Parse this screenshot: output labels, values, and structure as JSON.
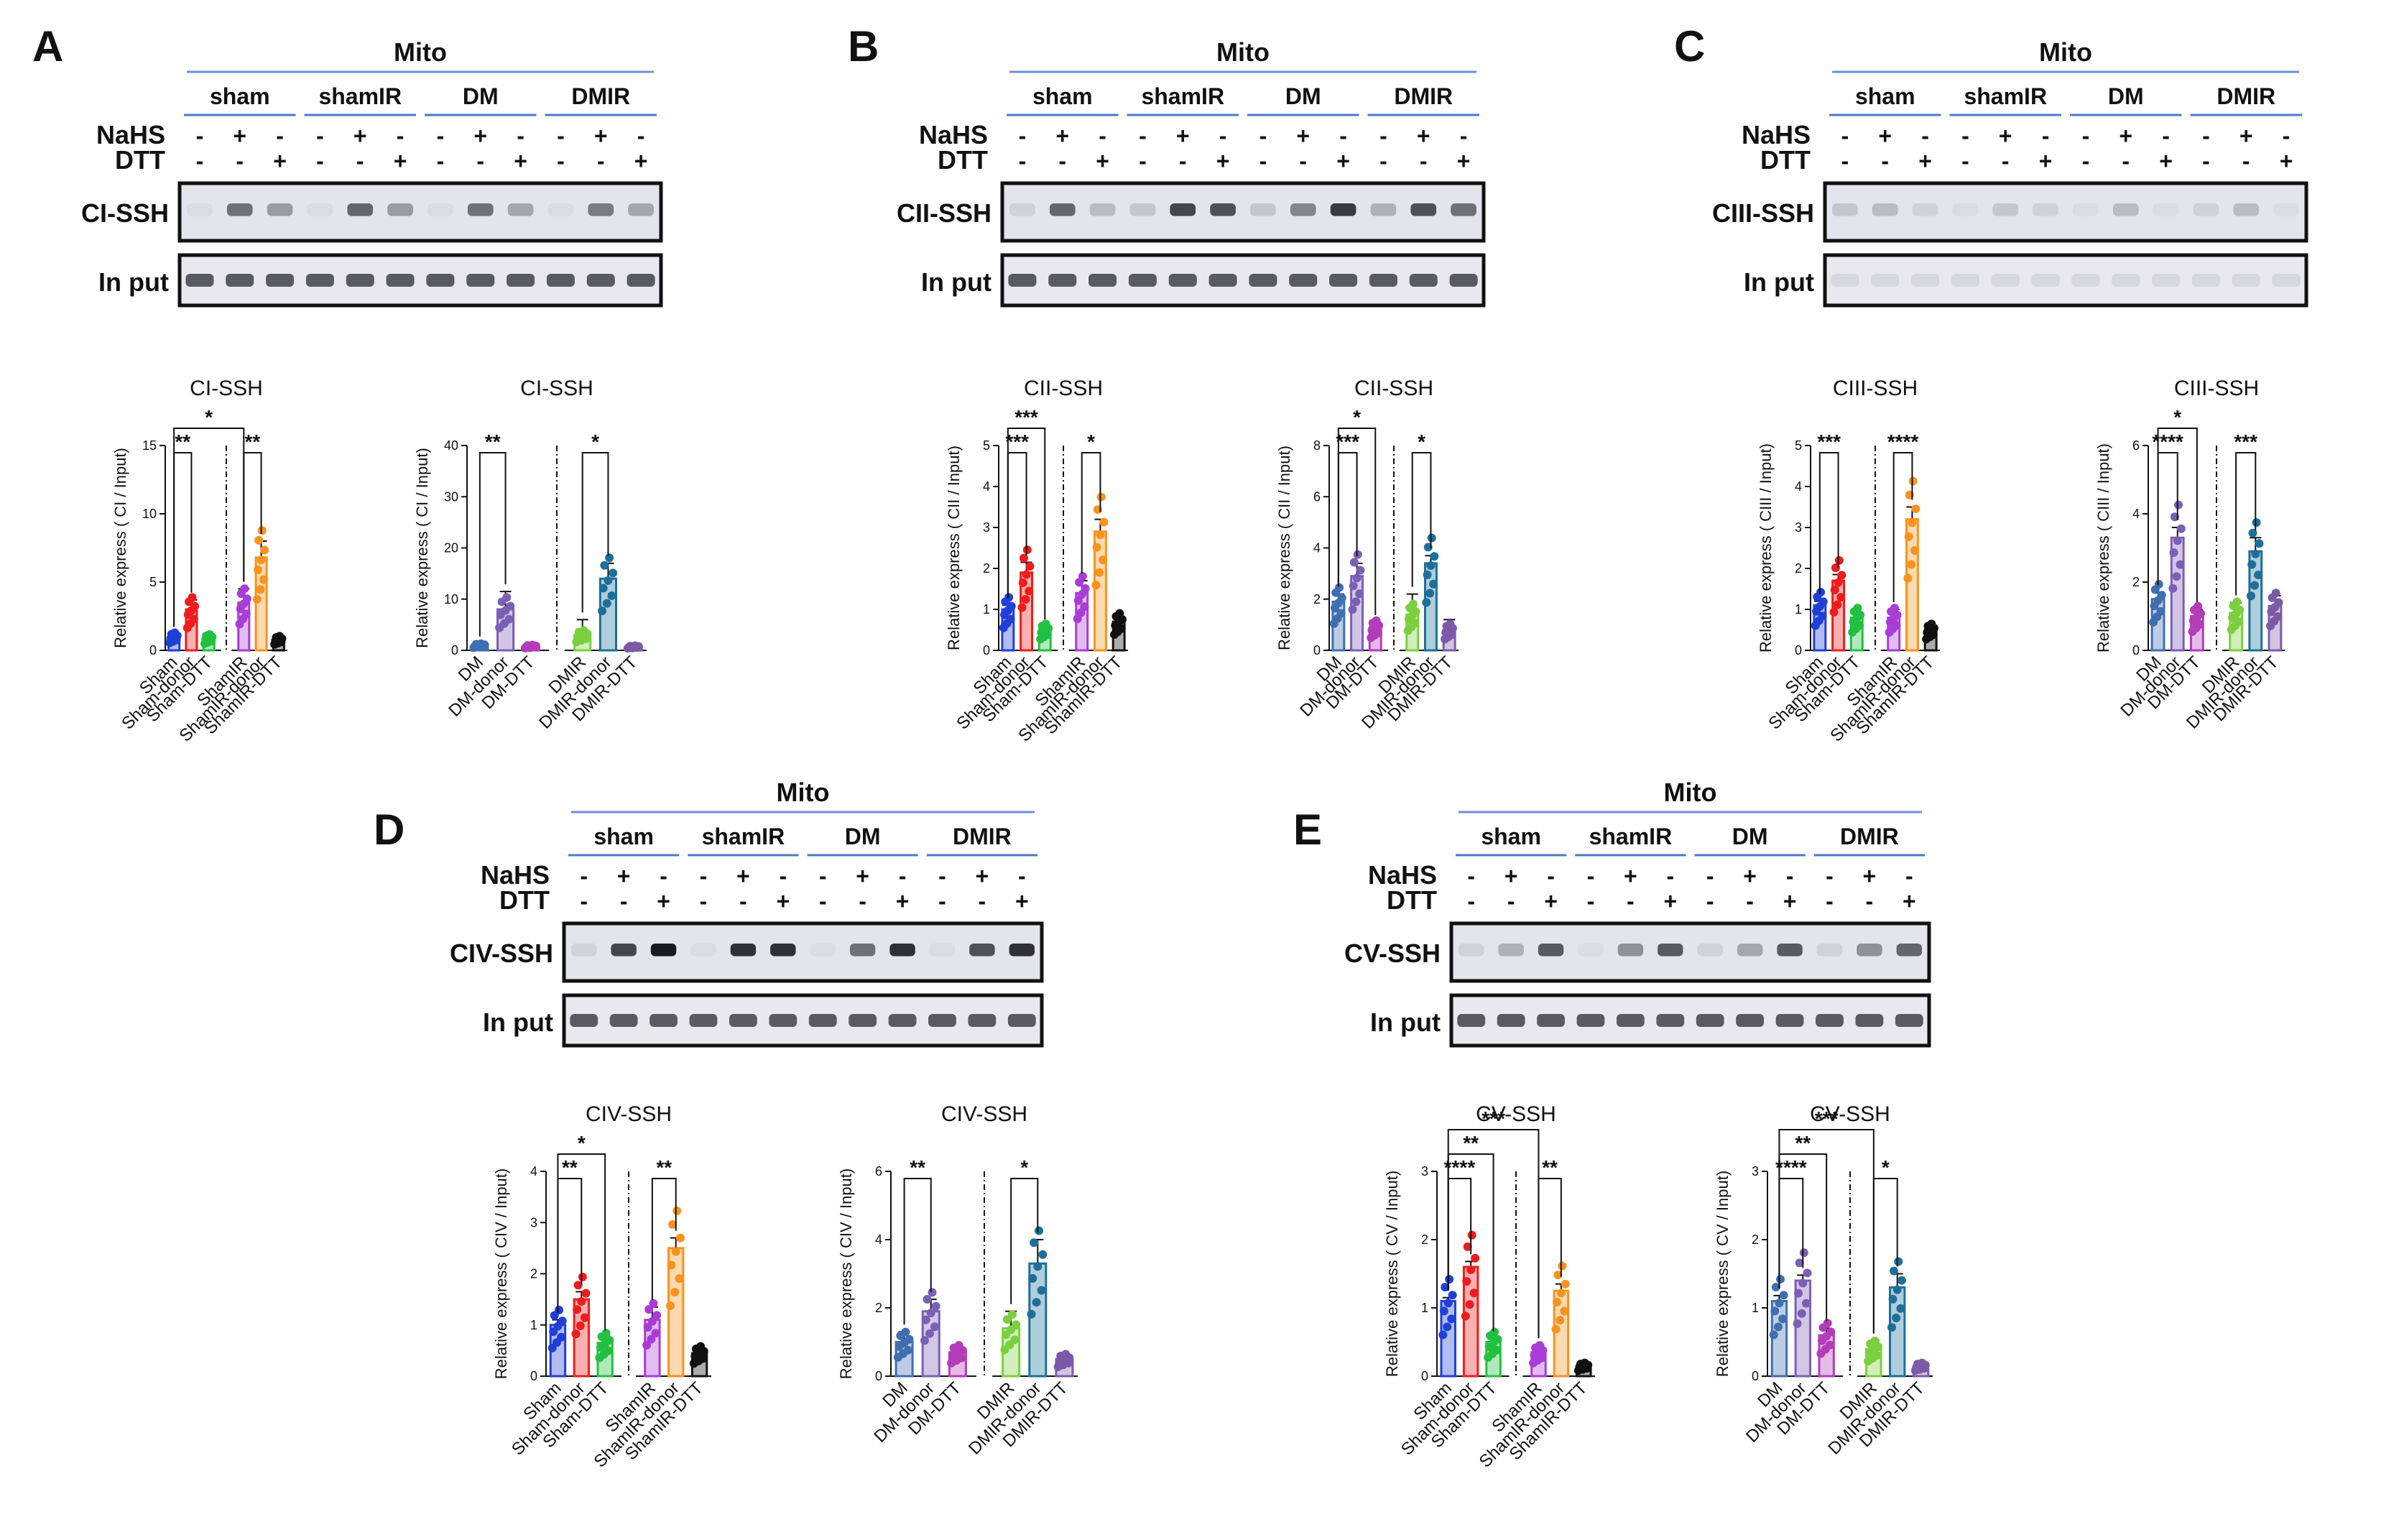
{
  "header": {
    "mito": "Mito",
    "groups": [
      "sham",
      "shamIR",
      "DM",
      "DMIR"
    ],
    "row_nahs": "NaHS",
    "row_dtt": "DTT",
    "nahs_signs": [
      "-",
      "+",
      "-"
    ],
    "dtt_signs": [
      "-",
      "-",
      "+"
    ],
    "input_label": "In put"
  },
  "colors": {
    "blue": "#1f3fd8",
    "red": "#ee1c1c",
    "green": "#22c040",
    "purple": "#a93cd6",
    "orange": "#f7931e",
    "black": "#111111",
    "steel": "#3f6fb0",
    "lavender": "#7b5fb5",
    "magenta": "#b33cb8",
    "lime": "#7bcf3e",
    "teal": "#1d6f99",
    "violet": "#7d5aa8"
  },
  "panels": [
    {
      "id": "A",
      "blot_label": "CI-SSH",
      "band_intensity": [
        0.05,
        0.55,
        0.35,
        0.05,
        0.6,
        0.35,
        0.05,
        0.55,
        0.3,
        0.05,
        0.5,
        0.3
      ]
    },
    {
      "id": "B",
      "blot_label": "CII-SSH",
      "band_intensity": [
        0.1,
        0.6,
        0.2,
        0.15,
        0.75,
        0.7,
        0.15,
        0.45,
        0.8,
        0.25,
        0.7,
        0.55
      ]
    },
    {
      "id": "C",
      "blot_label": "CIII-SSH",
      "band_intensity": [
        0.15,
        0.2,
        0.1,
        0.05,
        0.15,
        0.1,
        0.05,
        0.2,
        0.05,
        0.1,
        0.2,
        0.05
      ]
    },
    {
      "id": "D",
      "blot_label": "CIV-SSH",
      "band_intensity": [
        0.1,
        0.75,
        0.95,
        0.05,
        0.85,
        0.85,
        0.05,
        0.55,
        0.85,
        0.05,
        0.7,
        0.85
      ]
    },
    {
      "id": "E",
      "blot_label": "CV-SSH",
      "band_intensity": [
        0.1,
        0.25,
        0.65,
        0.05,
        0.4,
        0.65,
        0.1,
        0.3,
        0.65,
        0.1,
        0.4,
        0.6
      ]
    }
  ],
  "chart_data": [
    {
      "panel": "A",
      "type": "bar",
      "title": "CI-SSH",
      "ylabel": "Relative express ( CI / Input)",
      "categories": [
        "Sham",
        "Sham-donor",
        "Sham-DTT",
        "ShamIR",
        "ShamIR-donor",
        "ShamIR-DTT"
      ],
      "values": [
        1.0,
        3.0,
        0.9,
        3.5,
        6.8,
        0.8
      ],
      "errors": [
        0.2,
        0.7,
        0.2,
        1.0,
        1.2,
        0.2
      ],
      "ylim": [
        0,
        15
      ],
      "yticks": [
        0,
        5,
        10,
        15
      ],
      "color_keys": [
        "blue",
        "red",
        "green",
        "purple",
        "orange",
        "black"
      ],
      "significance": [
        {
          "a": 0,
          "b": 1,
          "label": "**",
          "level": 0
        },
        {
          "a": 0,
          "b": 3,
          "label": "*",
          "level": 1
        },
        {
          "a": 3,
          "b": 4,
          "label": "**",
          "level": 0
        }
      ]
    },
    {
      "panel": "A",
      "type": "bar",
      "title": "CI-SSH",
      "ylabel": "Relative express ( CI / Input)",
      "categories": [
        "DM",
        "DM-donor",
        "DM-DTT",
        "DMIR",
        "DMIR-donor",
        "DMIR-DTT"
      ],
      "values": [
        1.0,
        8.0,
        0.8,
        3.0,
        14.0,
        0.7
      ],
      "errors": [
        0.3,
        3.5,
        0.3,
        3.0,
        3.0,
        0.3
      ],
      "ylim": [
        0,
        40
      ],
      "yticks": [
        0,
        10,
        20,
        30,
        40
      ],
      "color_keys": [
        "steel",
        "lavender",
        "magenta",
        "lime",
        "teal",
        "violet"
      ],
      "significance": [
        {
          "a": 0,
          "b": 1,
          "label": "**",
          "level": 0
        },
        {
          "a": 3,
          "b": 4,
          "label": "*",
          "level": 0
        }
      ]
    },
    {
      "panel": "B",
      "type": "bar",
      "title": "CII-SSH",
      "ylabel": "Relative express ( CII / Input)",
      "categories": [
        "Sham",
        "Sham-donor",
        "Sham-DTT",
        "ShamIR",
        "ShamIR-donor",
        "ShamIR-DTT"
      ],
      "values": [
        1.0,
        1.9,
        0.5,
        1.4,
        2.9,
        0.7
      ],
      "errors": [
        0.1,
        0.25,
        0.08,
        0.3,
        0.3,
        0.12
      ],
      "ylim": [
        0,
        5
      ],
      "yticks": [
        0,
        1,
        2,
        3,
        4,
        5
      ],
      "color_keys": [
        "blue",
        "red",
        "green",
        "purple",
        "orange",
        "black"
      ],
      "significance": [
        {
          "a": 0,
          "b": 1,
          "label": "***",
          "level": 0
        },
        {
          "a": 0,
          "b": 2,
          "label": "***",
          "level": 1
        },
        {
          "a": 3,
          "b": 4,
          "label": "*",
          "level": 0
        }
      ]
    },
    {
      "panel": "B",
      "type": "bar",
      "title": "CII-SSH",
      "ylabel": "Relative express ( CII / Input)",
      "categories": [
        "DM",
        "DM-donor",
        "DM-DTT",
        "DMIR",
        "DMIR-donor",
        "DMIR-DTT"
      ],
      "values": [
        1.9,
        2.9,
        0.9,
        1.4,
        3.4,
        0.8
      ],
      "errors": [
        0.3,
        0.5,
        0.2,
        0.8,
        0.3,
        0.4
      ],
      "ylim": [
        0,
        8
      ],
      "yticks": [
        0,
        2,
        4,
        6,
        8
      ],
      "color_keys": [
        "steel",
        "lavender",
        "magenta",
        "lime",
        "teal",
        "violet"
      ],
      "significance": [
        {
          "a": 0,
          "b": 1,
          "label": "***",
          "level": 0
        },
        {
          "a": 0,
          "b": 2,
          "label": "*",
          "level": 1
        },
        {
          "a": 3,
          "b": 4,
          "label": "*",
          "level": 0
        }
      ]
    },
    {
      "panel": "C",
      "type": "bar",
      "title": "CIII-SSH",
      "ylabel": "Relative express ( CIII / Input)",
      "categories": [
        "Sham",
        "Sham-donor",
        "Sham-DTT",
        "ShamIR",
        "ShamIR-donor",
        "ShamIR-DTT"
      ],
      "values": [
        1.1,
        1.7,
        0.8,
        0.8,
        3.2,
        0.5
      ],
      "errors": [
        0.1,
        0.15,
        0.1,
        0.2,
        0.3,
        0.08
      ],
      "ylim": [
        0,
        5
      ],
      "yticks": [
        0,
        1,
        2,
        3,
        4,
        5
      ],
      "color_keys": [
        "blue",
        "red",
        "green",
        "purple",
        "orange",
        "black"
      ],
      "significance": [
        {
          "a": 0,
          "b": 1,
          "label": "***",
          "level": 0
        },
        {
          "a": 3,
          "b": 4,
          "label": "****",
          "level": 0
        }
      ]
    },
    {
      "panel": "C",
      "type": "bar",
      "title": "CIII-SSH",
      "ylabel": "Relative express ( CIII / Input)",
      "categories": [
        "DM",
        "DM-donor",
        "DM-DTT",
        "DMIR",
        "DMIR-donor",
        "DMIR-DTT"
      ],
      "values": [
        1.5,
        3.3,
        1.0,
        1.1,
        2.9,
        1.3
      ],
      "errors": [
        0.2,
        0.3,
        0.2,
        0.3,
        0.4,
        0.3
      ],
      "ylim": [
        0,
        6
      ],
      "yticks": [
        0,
        2,
        4,
        6
      ],
      "color_keys": [
        "steel",
        "lavender",
        "magenta",
        "lime",
        "teal",
        "violet"
      ],
      "significance": [
        {
          "a": 0,
          "b": 1,
          "label": "****",
          "level": 0
        },
        {
          "a": 0,
          "b": 2,
          "label": "*",
          "level": 1
        },
        {
          "a": 3,
          "b": 4,
          "label": "***",
          "level": 0
        }
      ]
    },
    {
      "panel": "D",
      "type": "bar",
      "title": "CIV-SSH",
      "ylabel": "Relative express ( CIV / Input)",
      "categories": [
        "Sham",
        "Sham-donor",
        "Sham-DTT",
        "ShamIR",
        "ShamIR-donor",
        "ShamIR-DTT"
      ],
      "values": [
        1.0,
        1.5,
        0.65,
        1.1,
        2.5,
        0.45
      ],
      "errors": [
        0.1,
        0.15,
        0.1,
        0.25,
        0.2,
        0.1
      ],
      "ylim": [
        0,
        4
      ],
      "yticks": [
        0,
        1,
        2,
        3,
        4
      ],
      "color_keys": [
        "blue",
        "red",
        "green",
        "purple",
        "orange",
        "black"
      ],
      "significance": [
        {
          "a": 0,
          "b": 1,
          "label": "**",
          "level": 0
        },
        {
          "a": 0,
          "b": 2,
          "label": "*",
          "level": 1
        },
        {
          "a": 3,
          "b": 4,
          "label": "**",
          "level": 0
        }
      ]
    },
    {
      "panel": "D",
      "type": "bar",
      "title": "CIV-SSH",
      "ylabel": "Relative express ( CIV / Input)",
      "categories": [
        "DM",
        "DM-donor",
        "DM-DTT",
        "DMIR",
        "DMIR-donor",
        "DMIR-DTT"
      ],
      "values": [
        1.0,
        1.9,
        0.7,
        1.4,
        3.3,
        0.5
      ],
      "errors": [
        0.3,
        0.35,
        0.15,
        0.5,
        0.7,
        0.15
      ],
      "ylim": [
        0,
        6
      ],
      "yticks": [
        0,
        2,
        4,
        6
      ],
      "color_keys": [
        "steel",
        "lavender",
        "magenta",
        "lime",
        "teal",
        "violet"
      ],
      "significance": [
        {
          "a": 0,
          "b": 1,
          "label": "**",
          "level": 0
        },
        {
          "a": 3,
          "b": 4,
          "label": "*",
          "level": 0
        }
      ]
    },
    {
      "panel": "E",
      "type": "bar",
      "title": "CV-SSH",
      "ylabel": "Relative express ( CV / Input)",
      "categories": [
        "Sham",
        "Sham-donor",
        "Sham-DTT",
        "ShamIR",
        "ShamIR-donor",
        "ShamIR-DTT"
      ],
      "values": [
        1.1,
        1.6,
        0.5,
        0.35,
        1.25,
        0.15
      ],
      "errors": [
        0.05,
        0.08,
        0.05,
        0.1,
        0.1,
        0.04
      ],
      "ylim": [
        0,
        3
      ],
      "yticks": [
        0,
        1,
        2,
        3
      ],
      "color_keys": [
        "blue",
        "red",
        "green",
        "purple",
        "orange",
        "black"
      ],
      "significance": [
        {
          "a": 0,
          "b": 1,
          "label": "****",
          "level": 0
        },
        {
          "a": 0,
          "b": 2,
          "label": "**",
          "level": 1
        },
        {
          "a": 0,
          "b": 3,
          "label": "***",
          "level": 2
        },
        {
          "a": 3,
          "b": 4,
          "label": "**",
          "level": 0
        }
      ]
    },
    {
      "panel": "E",
      "type": "bar",
      "title": "CV-SSH",
      "ylabel": "Relative express ( CV / Input)",
      "categories": [
        "DM",
        "DM-donor",
        "DM-DTT",
        "DMIR",
        "DMIR-donor",
        "DMIR-DTT"
      ],
      "values": [
        1.1,
        1.4,
        0.6,
        0.4,
        1.3,
        0.15
      ],
      "errors": [
        0.08,
        0.08,
        0.1,
        0.12,
        0.2,
        0.04
      ],
      "ylim": [
        0,
        3
      ],
      "yticks": [
        0,
        1,
        2,
        3
      ],
      "color_keys": [
        "steel",
        "lavender",
        "magenta",
        "lime",
        "teal",
        "violet"
      ],
      "significance": [
        {
          "a": 0,
          "b": 1,
          "label": "****",
          "level": 0
        },
        {
          "a": 0,
          "b": 2,
          "label": "**",
          "level": 1
        },
        {
          "a": 0,
          "b": 3,
          "label": "***",
          "level": 2
        },
        {
          "a": 3,
          "b": 4,
          "label": "*",
          "level": 0
        }
      ]
    }
  ]
}
